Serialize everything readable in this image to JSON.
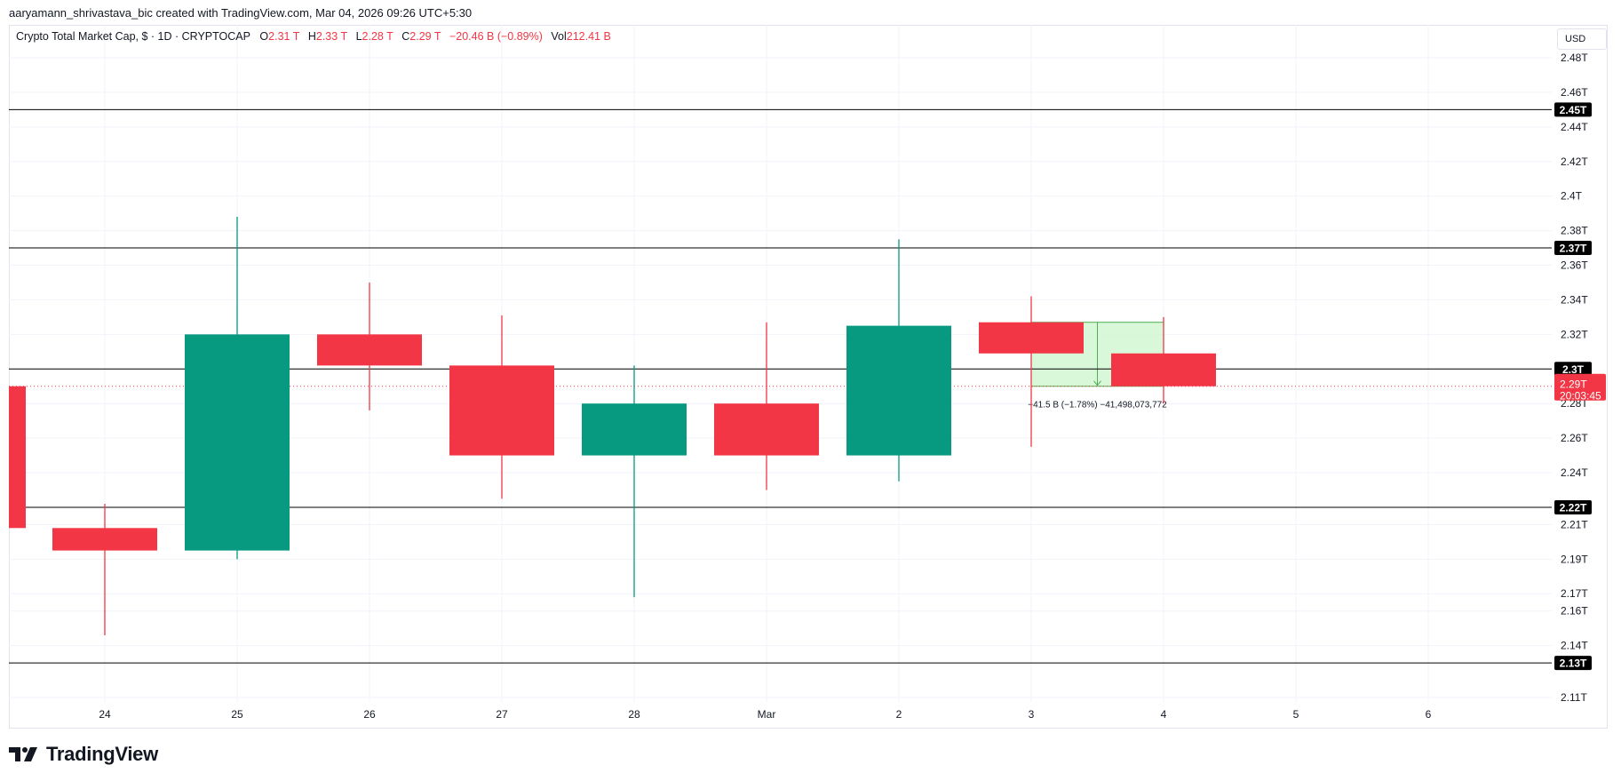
{
  "attribution": "aaryamann_shrivastava_bic created with TradingView.com, Mar 04, 2026 09:26 UTC+5:30",
  "brand": "TradingView",
  "legend": {
    "symbol": "Crypto Total Market Cap, $ · 1D · CRYPTOCAP",
    "open_label": "O",
    "open": "2.31 T",
    "high_label": "H",
    "high": "2.33 T",
    "low_label": "L",
    "low": "2.28 T",
    "close_label": "C",
    "close": "2.29 T",
    "change": "−20.46 B (−0.89%)",
    "vol_label": "Vol",
    "vol": "212.41 B"
  },
  "currency": "USD",
  "colors": {
    "up": "#089981",
    "down": "#f23645",
    "measure_fill": "#ccf5cc",
    "measure_line": "#4caf50",
    "badge": "#000000"
  },
  "chart_data": {
    "type": "candlestick",
    "x_tick_labels": [
      "24",
      "25",
      "26",
      "27",
      "28",
      "Mar",
      "2",
      "3",
      "4",
      "5",
      "6"
    ],
    "y_tick_labels": [
      "2.48T",
      "2.46T",
      "2.44T",
      "2.42T",
      "2.4T",
      "2.38T",
      "2.36T",
      "2.34T",
      "2.32T",
      "2.3T",
      "2.28T",
      "2.26T",
      "2.24T",
      "2.22T",
      "2.21T",
      "2.19T",
      "2.17T",
      "2.16T",
      "2.14T",
      "2.11T"
    ],
    "y_tick_values": [
      2.48,
      2.46,
      2.44,
      2.42,
      2.4,
      2.38,
      2.36,
      2.34,
      2.32,
      2.3,
      2.28,
      2.26,
      2.24,
      2.22,
      2.21,
      2.19,
      2.17,
      2.16,
      2.14,
      2.11
    ],
    "ylim": [
      2.105,
      2.495
    ],
    "candles": [
      {
        "date": "23",
        "open": 2.29,
        "high": 2.29,
        "low": 2.208,
        "close": 2.208,
        "partial": true
      },
      {
        "date": "24",
        "open": 2.208,
        "high": 2.222,
        "low": 2.146,
        "close": 2.195
      },
      {
        "date": "25",
        "open": 2.195,
        "high": 2.388,
        "low": 2.19,
        "close": 2.32
      },
      {
        "date": "26",
        "open": 2.32,
        "high": 2.35,
        "low": 2.276,
        "close": 2.302
      },
      {
        "date": "27",
        "open": 2.302,
        "high": 2.331,
        "low": 2.225,
        "close": 2.25
      },
      {
        "date": "28",
        "open": 2.25,
        "high": 2.302,
        "low": 2.168,
        "close": 2.28
      },
      {
        "date": "Mar",
        "open": 2.28,
        "high": 2.327,
        "low": 2.23,
        "close": 2.25
      },
      {
        "date": "2",
        "open": 2.25,
        "high": 2.375,
        "low": 2.235,
        "close": 2.325
      },
      {
        "date": "3",
        "open": 2.327,
        "high": 2.342,
        "low": 2.255,
        "close": 2.309
      },
      {
        "date": "4",
        "open": 2.309,
        "high": 2.33,
        "low": 2.28,
        "close": 2.29
      }
    ],
    "horizontal_levels": [
      {
        "value": 2.45,
        "label": "2.45T"
      },
      {
        "value": 2.37,
        "label": "2.37T"
      },
      {
        "value": 2.3,
        "label": "2.3T"
      },
      {
        "value": 2.22,
        "label": "2.22T"
      },
      {
        "value": 2.13,
        "label": "2.13T"
      }
    ],
    "last_price": {
      "value": 2.29,
      "label": "2.29T",
      "countdown": "20:03:45"
    },
    "measure": {
      "from_date": "3",
      "to_date": "4",
      "top": 2.327,
      "bottom": 2.29,
      "label": "−41.5 B (−1.78%) −41,498,073,772"
    }
  }
}
